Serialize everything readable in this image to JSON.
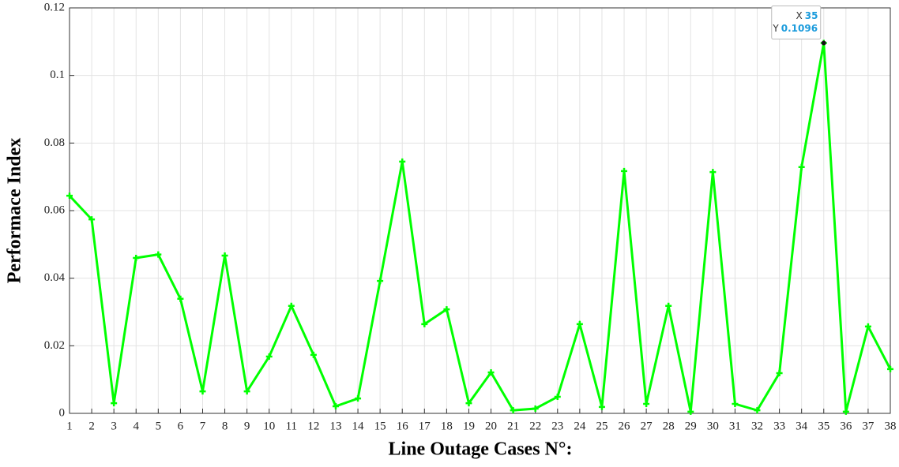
{
  "chart_data": {
    "type": "line",
    "xlabel": "Line Outage Cases N°:",
    "ylabel": "Performace Index",
    "x": [
      1,
      2,
      3,
      4,
      5,
      6,
      7,
      8,
      9,
      10,
      11,
      12,
      13,
      14,
      15,
      16,
      17,
      18,
      19,
      20,
      21,
      22,
      23,
      24,
      25,
      26,
      27,
      28,
      29,
      30,
      31,
      32,
      33,
      34,
      35,
      36,
      37,
      38
    ],
    "series": [
      {
        "color": "#00ff00",
        "values": [
          0.0644,
          0.0574,
          0.003,
          0.046,
          0.047,
          0.0339,
          0.0065,
          0.0467,
          0.0065,
          0.0168,
          0.0318,
          0.0173,
          0.0021,
          0.0044,
          0.0392,
          0.0745,
          0.0264,
          0.0308,
          0.003,
          0.0121,
          0.0009,
          0.0014,
          0.0049,
          0.0264,
          0.0019,
          0.0717,
          0.0028,
          0.0318,
          0.0005,
          0.0714,
          0.0028,
          0.0009,
          0.0119,
          0.0729,
          0.1096,
          0.0005,
          0.0257,
          0.0131
        ]
      }
    ],
    "xlim": [
      1,
      38
    ],
    "xticks": [
      1,
      2,
      3,
      4,
      5,
      6,
      7,
      8,
      9,
      10,
      11,
      12,
      13,
      14,
      15,
      16,
      17,
      18,
      19,
      20,
      21,
      22,
      23,
      24,
      25,
      26,
      27,
      28,
      29,
      30,
      31,
      32,
      33,
      34,
      35,
      36,
      37,
      38
    ],
    "ylim": [
      0,
      0.12
    ],
    "yticks": [
      0,
      0.02,
      0.04,
      0.06,
      0.08,
      0.1,
      0.12
    ],
    "grid": true,
    "datatip": {
      "x_label": "X",
      "x": 35,
      "y_label": "Y",
      "y": 0.1096
    }
  }
}
